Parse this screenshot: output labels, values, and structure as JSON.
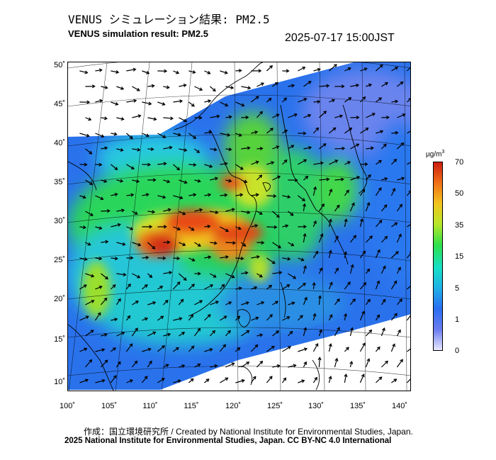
{
  "header": {
    "title_ja": "VENUS シミュレーション結果: PM2.5",
    "title_en": "VENUS simulation result: PM2.5",
    "timestamp": "2025-07-17 15:00JST"
  },
  "map": {
    "lat_ticks": [
      "50˚",
      "45˚",
      "40˚",
      "35˚",
      "30˚",
      "25˚",
      "20˚",
      "15˚",
      "10˚"
    ],
    "lon_ticks": [
      "100˚",
      "105˚",
      "110˚",
      "115˚",
      "120˚",
      "125˚",
      "130˚",
      "135˚",
      "140˚"
    ],
    "lat_values": [
      50,
      45,
      40,
      35,
      30,
      25,
      20,
      15,
      10
    ],
    "lon_values": [
      100,
      105,
      110,
      115,
      120,
      125,
      130,
      135,
      140
    ],
    "layers": [
      "PM2.5 concentration field",
      "wind vector arrows",
      "coastlines",
      "graticule"
    ]
  },
  "colorbar": {
    "unit": "µg/m",
    "unit_sup": "3",
    "tick_labels": [
      "70",
      "50",
      "35",
      "15",
      "5",
      "1",
      "0"
    ],
    "tick_values": [
      70,
      50,
      35,
      15,
      5,
      1,
      0
    ],
    "colors": [
      "#e8e8ff",
      "#6a7cf0",
      "#2a6ef2",
      "#1fb0e6",
      "#16e0c6",
      "#2fe04a",
      "#b7e72a",
      "#f2c51e",
      "#f07018",
      "#cc1c12"
    ]
  },
  "footer": {
    "credit_line1": "作成：国立環境研究所 / Created by National Institute for Environmental Studies, Japan.",
    "credit_line2": "2025 National Institute for Environmental Studies, Japan. CC BY-NC 4.0 International"
  }
}
